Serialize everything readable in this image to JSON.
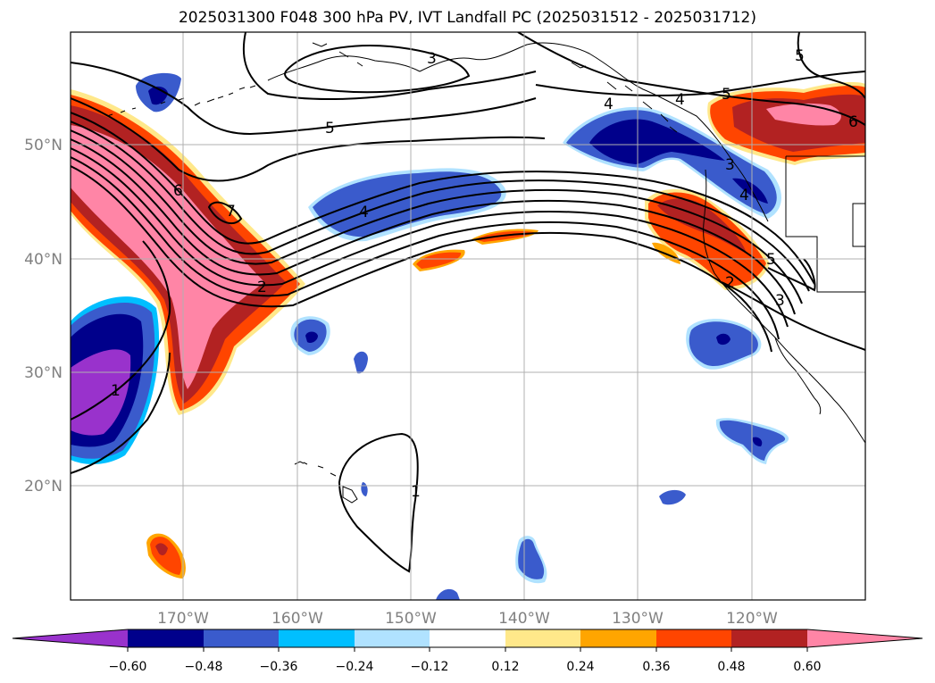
{
  "title": "2025031300 F048 300 hPa PV, IVT Landfall PC (2025031512 - 2025031712)",
  "map": {
    "lon_labels": [
      "170°W",
      "160°W",
      "150°W",
      "140°W",
      "130°W",
      "120°W"
    ],
    "lat_labels": [
      "50°N",
      "40°N",
      "30°N",
      "20°N"
    ],
    "tick_label_color": "#808080",
    "gridline_color": "#b0b0b0",
    "contour_labels": [
      {
        "id": "c3-north",
        "text": "3"
      },
      {
        "id": "c5-north",
        "text": "5"
      },
      {
        "id": "c5-northeast",
        "text": "5"
      },
      {
        "id": "c4-northeast",
        "text": "4"
      },
      {
        "id": "c5-canada",
        "text": "5"
      },
      {
        "id": "c6-canada",
        "text": "6"
      },
      {
        "id": "c6-west",
        "text": "6"
      },
      {
        "id": "c7-west",
        "text": "7"
      },
      {
        "id": "c4-jet",
        "text": "4"
      },
      {
        "id": "c2-jet",
        "text": "2"
      },
      {
        "id": "c1-southwest",
        "text": "1"
      },
      {
        "id": "c1-south",
        "text": "1"
      },
      {
        "id": "c2-coast",
        "text": "2"
      },
      {
        "id": "c3-coast",
        "text": "3"
      },
      {
        "id": "c4-coast",
        "text": "4"
      },
      {
        "id": "c5-coast",
        "text": "5"
      },
      {
        "id": "c3-bc",
        "text": "3"
      },
      {
        "id": "c4-bc",
        "text": "4"
      }
    ]
  },
  "colorbar": {
    "levels": [
      "−0.60",
      "−0.48",
      "−0.36",
      "−0.24",
      "−0.12",
      "0.12",
      "0.24",
      "0.36",
      "0.48",
      "0.60"
    ],
    "colors": [
      "#9932cc",
      "#00008b",
      "#3a5bcc",
      "#00bfff",
      "#b0e2ff",
      "#ffffff",
      "#ffe88a",
      "#ffa500",
      "#ff4500",
      "#b22222",
      "#ff85a6"
    ]
  }
}
